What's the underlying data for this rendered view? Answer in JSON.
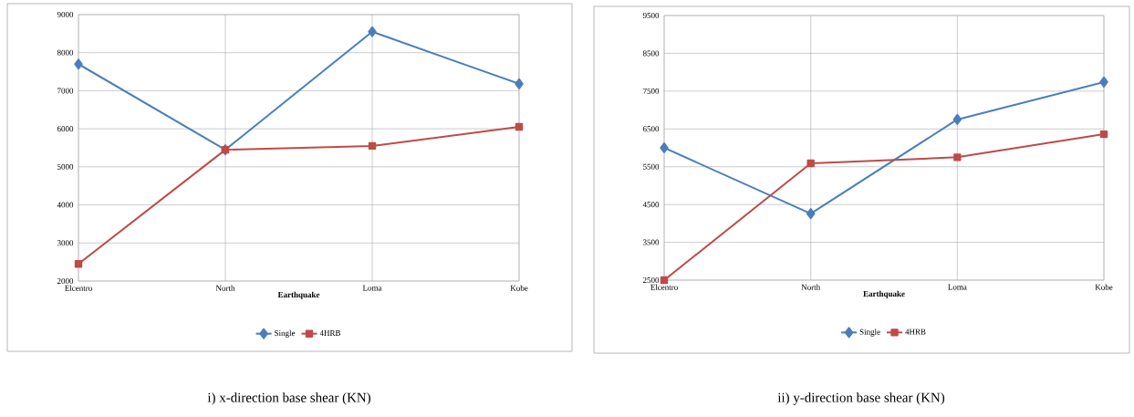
{
  "chart_data": [
    {
      "type": "line",
      "title": "i) x-direction base shear (KN)",
      "xlabel": "Earthquake",
      "categories": [
        "Elcentro",
        "North",
        "Loma",
        "Kobe"
      ],
      "series": [
        {
          "name": "Single",
          "color": "#4a7ebb",
          "marker": "diamond",
          "values": [
            7700,
            5450,
            8550,
            7180
          ]
        },
        {
          "name": "4HRB",
          "color": "#be4b48",
          "marker": "square",
          "values": [
            2450,
            5450,
            5550,
            6050
          ]
        }
      ],
      "ylim": [
        2000,
        9000
      ],
      "yticks": [
        2000,
        3000,
        4000,
        5000,
        6000,
        7000,
        8000,
        9000
      ],
      "grid": true,
      "legend": "bottom",
      "line_style": "solid"
    },
    {
      "type": "line",
      "title": "ii) y-direction base shear (KN)",
      "xlabel": "Earthquake",
      "categories": [
        "Elcentro",
        "North",
        "Loma",
        "Kobe"
      ],
      "series": [
        {
          "name": "Single",
          "color": "#4a7ebb",
          "marker": "diamond",
          "values": [
            6000,
            4260,
            6750,
            7740
          ]
        },
        {
          "name": "4HRB",
          "color": "#be4b48",
          "marker": "square",
          "values": [
            2500,
            5590,
            5750,
            6360
          ]
        }
      ],
      "ylim": [
        2500,
        9500
      ],
      "yticks": [
        2500,
        3500,
        4500,
        5500,
        6500,
        7500,
        8500,
        9500
      ],
      "grid": true,
      "legend": "bottom",
      "line_style": "solid"
    }
  ]
}
